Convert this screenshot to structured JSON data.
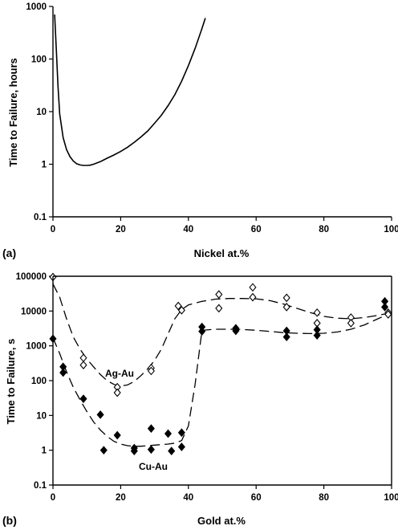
{
  "chart_data": [
    {
      "panel_label": "(a)",
      "type": "line",
      "xlabel": "Nickel at.%",
      "ylabel": "Time to Failure, hours",
      "xlim": [
        0,
        100
      ],
      "ylim": [
        0.1,
        1000
      ],
      "y_scale": "log",
      "x_ticks": [
        "0",
        "20",
        "40",
        "60",
        "80",
        "100"
      ],
      "y_ticks": [
        "0.1",
        "1",
        "10",
        "100",
        "1000"
      ],
      "grid": false,
      "series": [
        {
          "style": "solid",
          "x": [
            0.5,
            1,
            1.5,
            2,
            3,
            4,
            5,
            6,
            7,
            8,
            9,
            10,
            11,
            12,
            14,
            16,
            18,
            20,
            22,
            24,
            26,
            28,
            30,
            32,
            34,
            36,
            38,
            40,
            42,
            44,
            45
          ],
          "y": [
            700,
            150,
            30,
            9,
            3.2,
            1.9,
            1.4,
            1.15,
            1.02,
            0.97,
            0.95,
            0.95,
            0.96,
            1.0,
            1.12,
            1.3,
            1.5,
            1.75,
            2.1,
            2.6,
            3.3,
            4.3,
            6,
            8.5,
            13,
            21,
            38,
            75,
            160,
            380,
            600
          ]
        }
      ]
    },
    {
      "panel_label": "(b)",
      "type": "scatter",
      "xlabel": "Gold at.%",
      "ylabel": "Time to Failure, s",
      "xlim": [
        0,
        100
      ],
      "ylim": [
        0.1,
        100000
      ],
      "y_scale": "log",
      "x_ticks": [
        "0",
        "20",
        "40",
        "60",
        "80",
        "100"
      ],
      "y_ticks": [
        "0.1",
        "1",
        "10",
        "100",
        "1000",
        "10000",
        "100000"
      ],
      "grid": false,
      "series": [
        {
          "name": "Ag-Au",
          "marker": "open-diamond",
          "points": [
            [
              0,
              95000
            ],
            [
              9,
              450
            ],
            [
              9,
              280
            ],
            [
              19,
              65
            ],
            [
              19,
              45
            ],
            [
              29,
              230
            ],
            [
              29,
              190
            ],
            [
              37,
              14000
            ],
            [
              38,
              10500
            ],
            [
              49,
              30000
            ],
            [
              49,
              12000
            ],
            [
              59,
              48000
            ],
            [
              59,
              25000
            ],
            [
              69,
              24000
            ],
            [
              69,
              13000
            ],
            [
              78,
              9000
            ],
            [
              78,
              4500
            ],
            [
              88,
              6500
            ],
            [
              88,
              4500
            ],
            [
              99,
              9000
            ],
            [
              99,
              8000
            ]
          ],
          "trend_x": [
            0,
            2,
            4,
            6,
            8,
            10,
            12,
            14,
            16,
            18,
            20,
            22,
            24,
            26,
            28,
            30,
            32,
            34,
            36,
            38,
            40,
            44,
            48,
            52,
            56,
            60,
            64,
            68,
            72,
            76,
            80,
            84,
            88,
            92,
            96,
            100
          ],
          "trend_y": [
            60000,
            25000,
            6000,
            1800,
            800,
            420,
            250,
            150,
            100,
            78,
            70,
            75,
            95,
            140,
            220,
            380,
            800,
            2200,
            6000,
            11000,
            15000,
            19000,
            22000,
            23000,
            23000,
            22500,
            20000,
            16000,
            12000,
            9000,
            7000,
            6200,
            6000,
            6500,
            7500,
            9000
          ]
        },
        {
          "name": "Cu-Au",
          "marker": "filled-diamond",
          "points": [
            [
              0,
              1600
            ],
            [
              3,
              250
            ],
            [
              3,
              170
            ],
            [
              9,
              30
            ],
            [
              14,
              10.5
            ],
            [
              15,
              1.0
            ],
            [
              19,
              2.7
            ],
            [
              24,
              1.15
            ],
            [
              24,
              0.95
            ],
            [
              29,
              4.2
            ],
            [
              29,
              1.05
            ],
            [
              34,
              3.0
            ],
            [
              35,
              0.95
            ],
            [
              38,
              3.2
            ],
            [
              38,
              1.25
            ],
            [
              44,
              3500
            ],
            [
              44,
              2600
            ],
            [
              54,
              3200
            ],
            [
              54,
              2700
            ],
            [
              69,
              2700
            ],
            [
              69,
              1800
            ],
            [
              78,
              2900
            ],
            [
              78,
              2000
            ],
            [
              98,
              19000
            ],
            [
              98,
              13000
            ]
          ],
          "trend_x": [
            0,
            2,
            4,
            6,
            8,
            10,
            12,
            14,
            16,
            18,
            20,
            22,
            24,
            26,
            28,
            30,
            32,
            34,
            36,
            38,
            40,
            42,
            44,
            48,
            52,
            56,
            60,
            64,
            68,
            72,
            76,
            80,
            84,
            88,
            92,
            96,
            100
          ],
          "trend_y": [
            1700,
            600,
            180,
            65,
            28,
            13,
            6.5,
            3.8,
            2.5,
            1.8,
            1.5,
            1.35,
            1.3,
            1.3,
            1.35,
            1.4,
            1.45,
            1.5,
            1.6,
            1.9,
            5,
            80,
            2800,
            3000,
            3000,
            2950,
            2800,
            2600,
            2400,
            2300,
            2250,
            2300,
            2500,
            3000,
            4000,
            6000,
            9000
          ]
        }
      ]
    }
  ]
}
